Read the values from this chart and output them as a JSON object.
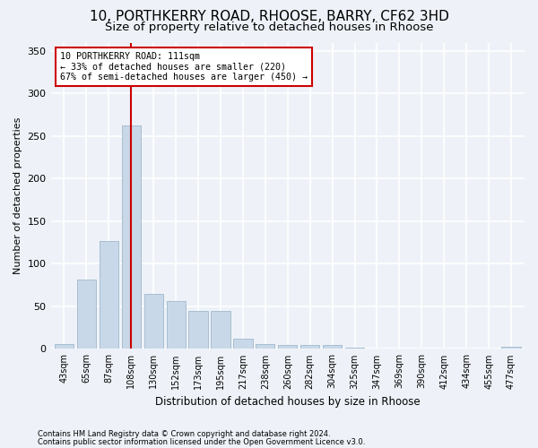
{
  "title1": "10, PORTHKERRY ROAD, RHOOSE, BARRY, CF62 3HD",
  "title2": "Size of property relative to detached houses in Rhoose",
  "xlabel": "Distribution of detached houses by size in Rhoose",
  "ylabel": "Number of detached properties",
  "categories": [
    "43sqm",
    "65sqm",
    "87sqm",
    "108sqm",
    "130sqm",
    "152sqm",
    "173sqm",
    "195sqm",
    "217sqm",
    "238sqm",
    "260sqm",
    "282sqm",
    "304sqm",
    "325sqm",
    "347sqm",
    "369sqm",
    "390sqm",
    "412sqm",
    "434sqm",
    "455sqm",
    "477sqm"
  ],
  "values": [
    6,
    82,
    127,
    263,
    65,
    56,
    45,
    45,
    12,
    6,
    5,
    5,
    5,
    2,
    0,
    0,
    0,
    0,
    0,
    0,
    3
  ],
  "bar_color": "#c8d8e8",
  "bar_edge_color": "#a0b8cc",
  "vline_x": 3,
  "vline_color": "#cc0000",
  "annotation_line1": "10 PORTHKERRY ROAD: 111sqm",
  "annotation_line2": "← 33% of detached houses are smaller (220)",
  "annotation_line3": "67% of semi-detached houses are larger (450) →",
  "annotation_box_color": "#ffffff",
  "annotation_box_edge": "#cc0000",
  "ylim": [
    0,
    360
  ],
  "yticks": [
    0,
    50,
    100,
    150,
    200,
    250,
    300,
    350
  ],
  "footnote1": "Contains HM Land Registry data © Crown copyright and database right 2024.",
  "footnote2": "Contains public sector information licensed under the Open Government Licence v3.0.",
  "bg_color": "#eef2f8",
  "grid_color": "#ffffff",
  "title1_fontsize": 11,
  "title2_fontsize": 9.5
}
